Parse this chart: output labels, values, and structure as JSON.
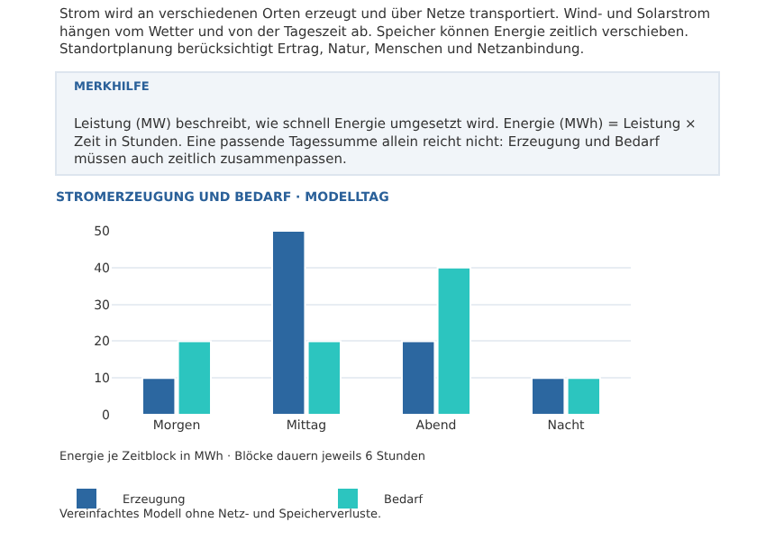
{
  "chart_data": {
    "type": "bar",
    "title": "STROMERZEUGUNG UND BEDARF · MODELLTAG",
    "categories": [
      "Morgen",
      "Mittag",
      "Abend",
      "Nacht"
    ],
    "series": [
      {
        "name": "Erzeugung",
        "color": "#2c67a0",
        "values": [
          10,
          50,
          20,
          10
        ]
      },
      {
        "name": "Bedarf",
        "color": "#2cc5bf",
        "values": [
          20,
          20,
          40,
          10
        ]
      }
    ],
    "ylim": [
      0,
      50
    ],
    "yticks": [
      0,
      10,
      20,
      30,
      40,
      50
    ],
    "grid": "y",
    "legend": "bottom",
    "annotations": [
      "Strom wird an verschiedenen Orten erzeugt und über Netze transportiert. Wind- und Solarstrom\nhängen vom Wetter und von der Tageszeit ab. Speicher können Energie zeitlich verschieben.\nStandortplanung berücksichtigt Ertrag, Natur, Menschen und Netzanbindung.",
      "MERKHILFE",
      "Leistung (MW) beschreibt, wie schnell Energie umgesetzt wird. Energie (MWh) = Leistung ×\nZeit in Stunden. Eine passende Tagessumme allein reicht nicht: Erzeugung und Bedarf\nmüssen auch zeitlich zusammenpassen.",
      "Energie je Zeitblock in MWh · Blöcke dauern jeweils 6 Stunden",
      "Vereinfachtes Modell ohne Netz- und Speicherverluste."
    ]
  }
}
